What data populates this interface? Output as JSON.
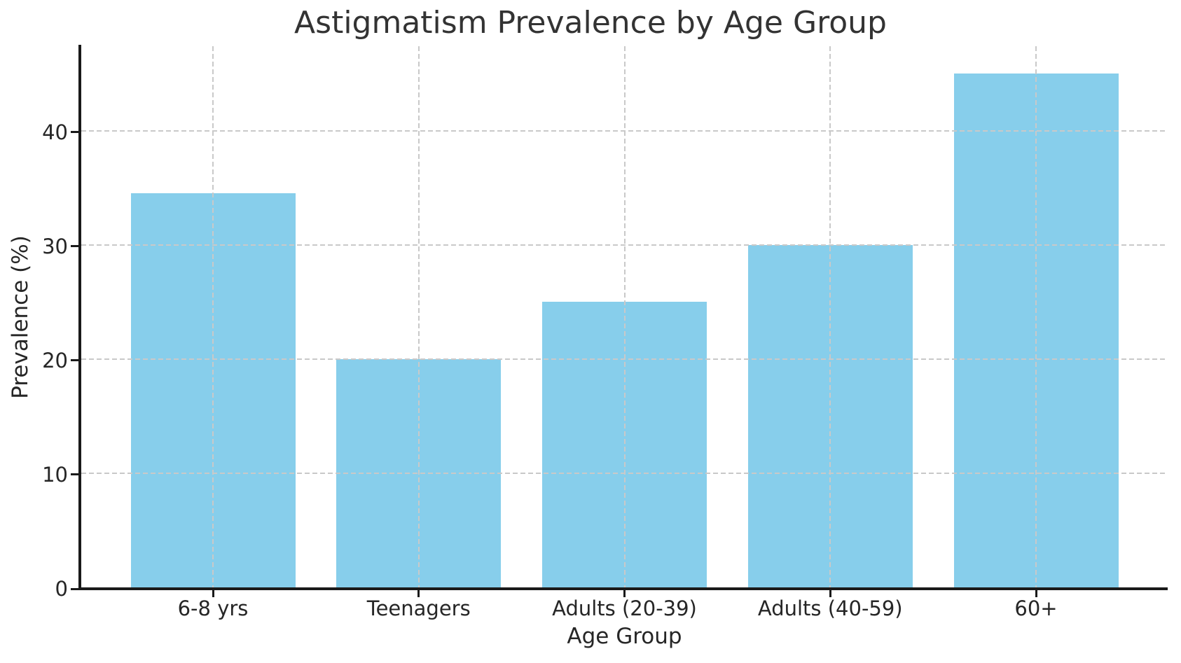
{
  "chart_data": {
    "type": "bar",
    "title": "Astigmatism Prevalence by Age Group",
    "xlabel": "Age Group",
    "ylabel": "Prevalence (%)",
    "categories": [
      "6-8 yrs",
      "Teenagers",
      "Adults (20-39)",
      "Adults (40-59)",
      "60+"
    ],
    "values": [
      34.5,
      20,
      25,
      30,
      45
    ],
    "yticks": [
      0,
      10,
      20,
      30,
      40
    ],
    "ylim": [
      0,
      47.4
    ],
    "grid": true,
    "grid_axis": "both",
    "grid_style": "dashed",
    "grid_above_bars": true,
    "legend": false,
    "spines": [
      "left",
      "bottom"
    ],
    "bar_color": "#87CEEB",
    "grid_color": "#c9c9c9",
    "text_color": "#262626",
    "title_color": "#333333",
    "spine_color": "#1a1a1a",
    "background_color": "#ffffff"
  }
}
